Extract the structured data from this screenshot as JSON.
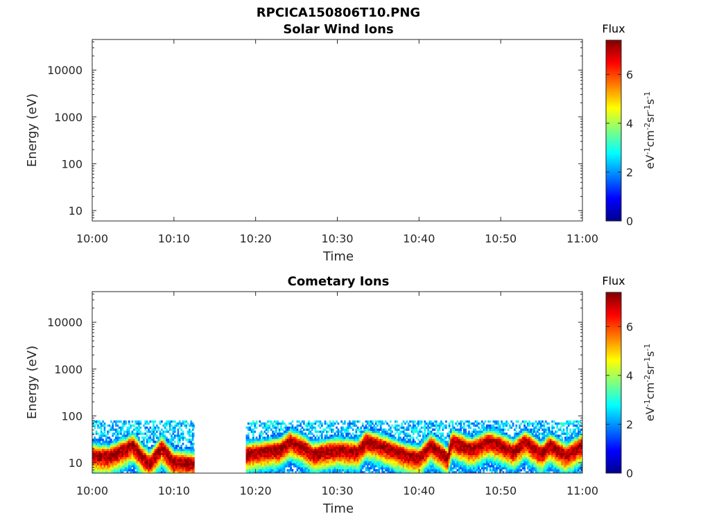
{
  "figure": {
    "title": "RPCICA150806T10.PNG"
  },
  "chart_data": [
    {
      "type": "heatmap",
      "title": "Solar Wind Ions",
      "xlabel": "Time",
      "ylabel": "Energy (eV)",
      "x_ticks": [
        "10:00",
        "10:10",
        "10:20",
        "10:30",
        "10:40",
        "10:50",
        "11:00"
      ],
      "x_range_minutes": [
        0,
        60
      ],
      "y_scale": "log",
      "y_ticks": [
        "10",
        "100",
        "1000",
        "10000"
      ],
      "y_range": [
        6,
        45000
      ],
      "colorbar": {
        "label": "Flux",
        "unit": "eV-1cm-2sr-1s-1",
        "range": [
          0,
          7.4
        ],
        "ticks": [
          "0",
          "2",
          "4",
          "6"
        ],
        "colormap": "jet"
      },
      "data_present": false,
      "segments": []
    },
    {
      "type": "heatmap",
      "title": "Cometary Ions",
      "xlabel": "Time",
      "ylabel": "Energy (eV)",
      "x_ticks": [
        "10:00",
        "10:10",
        "10:20",
        "10:30",
        "10:40",
        "10:50",
        "11:00"
      ],
      "x_range_minutes": [
        0,
        60
      ],
      "y_scale": "log",
      "y_ticks": [
        "10",
        "100",
        "1000",
        "10000"
      ],
      "y_range": [
        6,
        45000
      ],
      "colorbar": {
        "label": "Flux",
        "unit": "eV-1cm-2sr-1s-1",
        "range": [
          0,
          7.4
        ],
        "ticks": [
          "0",
          "2",
          "4",
          "6"
        ],
        "colormap": "jet"
      },
      "data_present": true,
      "data_gaps_minutes": [
        [
          12.5,
          18.8
        ]
      ],
      "segments": [
        {
          "start_min": 0,
          "end_min": 12.5
        },
        {
          "start_min": 18.8,
          "end_min": 60
        }
      ],
      "energy_extent_eV": [
        6,
        80
      ],
      "peak_energy_track": [
        {
          "t": 0,
          "e": 15
        },
        {
          "t": 2,
          "e": 14
        },
        {
          "t": 4,
          "e": 20
        },
        {
          "t": 5,
          "e": 25
        },
        {
          "t": 6,
          "e": 15
        },
        {
          "t": 7,
          "e": 10
        },
        {
          "t": 8.5,
          "e": 22
        },
        {
          "t": 10,
          "e": 11
        },
        {
          "t": 12.5,
          "e": 10
        },
        {
          "t": 18.8,
          "e": 16
        },
        {
          "t": 21,
          "e": 18
        },
        {
          "t": 23,
          "e": 20
        },
        {
          "t": 24.2,
          "e": 30
        },
        {
          "t": 26,
          "e": 22
        },
        {
          "t": 27,
          "e": 16
        },
        {
          "t": 30,
          "e": 20
        },
        {
          "t": 32.5,
          "e": 18
        },
        {
          "t": 33.5,
          "e": 30
        },
        {
          "t": 36,
          "e": 22
        },
        {
          "t": 38,
          "e": 16
        },
        {
          "t": 40,
          "e": 13
        },
        {
          "t": 41.5,
          "e": 25
        },
        {
          "t": 43.5,
          "e": 13
        },
        {
          "t": 44,
          "e": 30
        },
        {
          "t": 46.5,
          "e": 20
        },
        {
          "t": 48.5,
          "e": 30
        },
        {
          "t": 50,
          "e": 25
        },
        {
          "t": 51.5,
          "e": 18
        },
        {
          "t": 53,
          "e": 30
        },
        {
          "t": 55,
          "e": 16
        },
        {
          "t": 56,
          "e": 25
        },
        {
          "t": 58,
          "e": 15
        },
        {
          "t": 60,
          "e": 25
        }
      ]
    }
  ]
}
